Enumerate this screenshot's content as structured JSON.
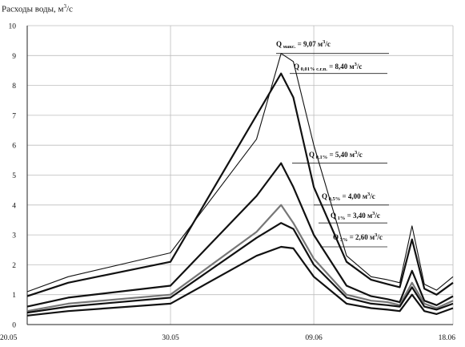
{
  "chart_data": {
    "type": "line",
    "ylabel": "Расходы воды, м³/с",
    "ylabel_parts": {
      "text": "Расходы воды, м",
      "sup": "3",
      "tail": "/с"
    },
    "ylim": [
      0,
      10
    ],
    "yticks": [
      "0",
      "1",
      "2",
      "3",
      "4",
      "5",
      "6",
      "7",
      "8",
      "9",
      "10"
    ],
    "xlabels": [
      "20.05",
      "30.05",
      "09.06",
      "18.06"
    ],
    "grid": true,
    "series": [
      {
        "name": "Q макс.",
        "label_value": "Q макс. = 9,07 м³/с",
        "peak": 9.07,
        "color": "#111111",
        "width": 1.1,
        "values": [
          1.1,
          1.6,
          2.4,
          6.2,
          9.07,
          8.8,
          6.0,
          2.3,
          1.6,
          1.5,
          1.4,
          3.3,
          1.35,
          1.15,
          1.6
        ]
      },
      {
        "name": "Q 0,01% с.г.п.",
        "label_value": "Q 0,01% с.г.п. = 8,40 м³/с",
        "peak": 8.4,
        "color": "#111111",
        "width": 2.2,
        "values": [
          0.95,
          1.4,
          2.1,
          7.0,
          8.4,
          7.6,
          4.6,
          2.1,
          1.5,
          1.35,
          1.25,
          2.85,
          1.2,
          1.0,
          1.4
        ]
      },
      {
        "name": "Q 0,1%",
        "label_value": "Q 0,1% = 5,40 м³/с",
        "peak": 5.4,
        "color": "#111111",
        "width": 2.2,
        "values": [
          0.6,
          0.9,
          1.3,
          4.3,
          5.4,
          4.6,
          3.0,
          1.3,
          0.95,
          0.85,
          0.75,
          1.8,
          0.8,
          0.65,
          0.95
        ]
      },
      {
        "name": "Q 0,5%",
        "label_value": "Q 0,5% = 4,00 м³/с",
        "peak": 4.0,
        "color": "#777777",
        "width": 2.2,
        "values": [
          0.45,
          0.7,
          1.0,
          3.1,
          4.0,
          3.4,
          2.2,
          1.0,
          0.8,
          0.75,
          0.65,
          1.4,
          0.7,
          0.55,
          0.8
        ]
      },
      {
        "name": "Q 1%",
        "label_value": "Q 1% = 3,40 м³/с",
        "peak": 3.4,
        "color": "#111111",
        "width": 2.2,
        "values": [
          0.4,
          0.6,
          0.9,
          2.9,
          3.4,
          3.2,
          2.0,
          0.9,
          0.7,
          0.65,
          0.6,
          1.25,
          0.6,
          0.5,
          0.7
        ]
      },
      {
        "name": "Q 3%",
        "label_value": "Q 3% = 2,60 м³/с",
        "peak": 2.6,
        "color": "#111111",
        "width": 2.2,
        "values": [
          0.3,
          0.45,
          0.7,
          2.3,
          2.6,
          2.55,
          1.6,
          0.7,
          0.55,
          0.5,
          0.45,
          1.0,
          0.45,
          0.35,
          0.55
        ]
      }
    ],
    "annotations": [
      {
        "main": "Q",
        "sub": "макс.",
        "rest": " = 9,07 м",
        "sup": "3",
        "tail": "/с"
      },
      {
        "main": "Q",
        "sub": "0,01% с.г.п.",
        "rest": " = 8,40 м",
        "sup": "3",
        "tail": "/с"
      },
      {
        "main": "Q",
        "sub": "0,1%",
        "rest": " = 5,40 м",
        "sup": "3",
        "tail": "/с"
      },
      {
        "main": "Q",
        "sub": "0,5%",
        "rest": " = 4,00 м",
        "sup": "3",
        "tail": "/с"
      },
      {
        "main": "Q",
        "sub": "1%",
        "rest": " = 3,40 м",
        "sup": "3",
        "tail": "/с"
      },
      {
        "main": "Q",
        "sub": "3%",
        "rest": " = 2,60 м",
        "sup": "3",
        "tail": "/с"
      }
    ]
  }
}
